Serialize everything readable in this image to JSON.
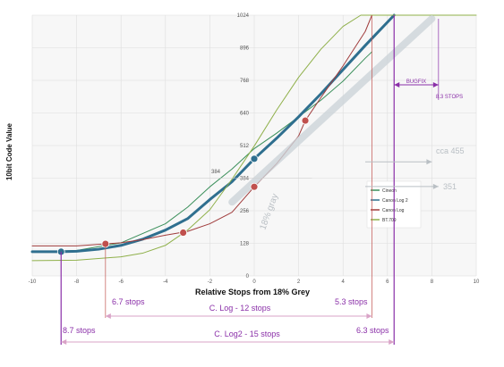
{
  "chart_data": {
    "type": "line",
    "xlabel": "Relative Stops from 18% Grey",
    "ylabel": "10bit Code Value",
    "xlim": [
      -10,
      10
    ],
    "ylim": [
      0,
      1024
    ],
    "x_ticks": [
      "-10",
      "-8",
      "-6",
      "-4",
      "-2",
      "0",
      "2",
      "4",
      "6",
      "8",
      "10"
    ],
    "y_ticks": [
      "0",
      "128",
      "256",
      "384",
      "512",
      "640",
      "768",
      "896",
      "1024"
    ],
    "grid": true,
    "legend_position": "right, inside plot",
    "series": [
      {
        "name": "Cineon",
        "color": "#3a8f5a",
        "x": [
          -10,
          -8,
          -6,
          -4,
          -3,
          -2,
          -1,
          0,
          1,
          2,
          3,
          4,
          5,
          5.3
        ],
        "y": [
          95,
          100,
          130,
          205,
          270,
          350,
          420,
          500,
          560,
          625,
          690,
          765,
          855,
          880
        ]
      },
      {
        "name": "Canon Log 2",
        "color": "#2f6f8f",
        "x": [
          -10,
          -8.7,
          -8,
          -7,
          -6,
          -5,
          -4,
          -3,
          -2,
          -1,
          0,
          1,
          2,
          3,
          4,
          5,
          6.3
        ],
        "y": [
          95,
          95,
          97,
          105,
          120,
          145,
          180,
          225,
          300,
          370,
          460,
          540,
          625,
          715,
          810,
          905,
          1024
        ]
      },
      {
        "name": "Canon Log",
        "color": "#a03c3c",
        "x": [
          -10,
          -8,
          -6.7,
          -6,
          -5,
          -4,
          -3,
          -2,
          -1,
          0,
          1,
          2,
          2.3,
          3,
          4,
          5,
          5.3
        ],
        "y": [
          118,
          118,
          126,
          130,
          143,
          160,
          175,
          205,
          250,
          350,
          440,
          550,
          610,
          700,
          825,
          960,
          1024
        ]
      },
      {
        "name": "BT.709",
        "color": "#8fb04a",
        "x": [
          -10,
          -8,
          -6,
          -5,
          -4,
          -3,
          -2,
          -1,
          0,
          1,
          2,
          3,
          4,
          4.8,
          10
        ],
        "y": [
          60,
          62,
          75,
          90,
          120,
          180,
          260,
          380,
          510,
          650,
          780,
          890,
          980,
          1024,
          1024
        ]
      },
      {
        "name": "",
        "color": "#ccd3d8",
        "x": [
          -1,
          8
        ],
        "y": [
          290,
          1010
        ]
      }
    ],
    "markers": [
      {
        "series": "Canon Log 2",
        "x": -8.7,
        "y": 95,
        "color": "#2f6f8f"
      },
      {
        "series": "Canon Log 2",
        "x": 0,
        "y": 460,
        "color": "#2f6f8f"
      },
      {
        "series": "Canon Log",
        "x": -6.7,
        "y": 126,
        "color": "#c0504d"
      },
      {
        "series": "Canon Log",
        "x": -3.2,
        "y": 170,
        "color": "#c0504d"
      },
      {
        "series": "Canon Log",
        "x": 0,
        "y": 350,
        "color": "#c0504d"
      },
      {
        "series": "Canon Log",
        "x": 2.3,
        "y": 610,
        "color": "#c0504d"
      }
    ],
    "annotations": {
      "gray_label": "18% gray",
      "level_384": "384",
      "cc_455": "cca 455",
      "cc_351": "351",
      "bugfix": "BUGFIX",
      "bugfix_stops": "8.3 STOPS",
      "clog_left": "6.7 stops",
      "clog_mid": "C. Log - 12 stops",
      "clog_right": "5.3 stops",
      "clog2_left": "8.7 stops",
      "clog2_mid": "C. Log2 - 15 stops",
      "clog2_right": "6.3 stops"
    },
    "colors": {
      "purple": "#8a2fa8",
      "bracket_pink": "#d9a3c7",
      "grey_annotation": "#b9bfc4"
    }
  }
}
